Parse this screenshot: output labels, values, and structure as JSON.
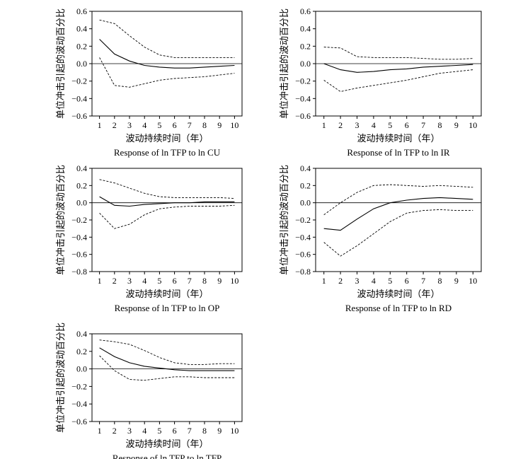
{
  "chart_data": [
    {
      "type": "line",
      "title": "Response of ln TFP to ln CU",
      "xlabel": "波动持续时间（年）",
      "ylabel": "单位冲击引起的波动百分比",
      "x": [
        1,
        2,
        3,
        4,
        5,
        6,
        7,
        8,
        9,
        10
      ],
      "xlim": [
        0.5,
        10.5
      ],
      "ylim": [
        -0.6,
        0.6
      ],
      "yticks": [
        "0.6",
        "0.4",
        "0.2",
        "0.0",
        "−0.2",
        "−0.4",
        "−0.6"
      ],
      "xticks": [
        "1",
        "2",
        "3",
        "4",
        "5",
        "6",
        "7",
        "8",
        "9",
        "10"
      ],
      "grid": false,
      "series": [
        {
          "role": "response",
          "style": "solid",
          "values": [
            0.28,
            0.11,
            0.03,
            -0.02,
            -0.04,
            -0.05,
            -0.05,
            -0.04,
            -0.03,
            -0.02
          ]
        },
        {
          "role": "upper",
          "style": "dashed",
          "values": [
            0.5,
            0.46,
            0.32,
            0.19,
            0.1,
            0.07,
            0.07,
            0.07,
            0.07,
            0.07
          ]
        },
        {
          "role": "lower",
          "style": "dashed",
          "values": [
            0.07,
            -0.25,
            -0.27,
            -0.23,
            -0.19,
            -0.17,
            -0.16,
            -0.15,
            -0.13,
            -0.11
          ]
        }
      ]
    },
    {
      "type": "line",
      "title": "Response of ln TFP to ln IR",
      "xlabel": "波动持续时间（年）",
      "ylabel": "单位冲击引起的波动百分比",
      "x": [
        1,
        2,
        3,
        4,
        5,
        6,
        7,
        8,
        9,
        10
      ],
      "xlim": [
        0.5,
        10.5
      ],
      "ylim": [
        -0.6,
        0.6
      ],
      "yticks": [
        "0.6",
        "0.4",
        "0.2",
        "0.0",
        "−0.2",
        "−0.4",
        "−0.6"
      ],
      "xticks": [
        "1",
        "2",
        "3",
        "4",
        "5",
        "6",
        "7",
        "8",
        "9",
        "10"
      ],
      "grid": false,
      "series": [
        {
          "role": "response",
          "style": "solid",
          "values": [
            0.0,
            -0.07,
            -0.1,
            -0.09,
            -0.07,
            -0.06,
            -0.04,
            -0.03,
            -0.02,
            -0.01
          ]
        },
        {
          "role": "upper",
          "style": "dashed",
          "values": [
            0.19,
            0.18,
            0.08,
            0.07,
            0.07,
            0.07,
            0.06,
            0.05,
            0.05,
            0.06
          ]
        },
        {
          "role": "lower",
          "style": "dashed",
          "values": [
            -0.19,
            -0.32,
            -0.28,
            -0.25,
            -0.22,
            -0.19,
            -0.15,
            -0.11,
            -0.09,
            -0.07
          ]
        }
      ]
    },
    {
      "type": "line",
      "title": "Response of ln TFP to ln OP",
      "xlabel": "波动持续时间（年）",
      "ylabel": "单位冲击引起的波动百分比",
      "x": [
        1,
        2,
        3,
        4,
        5,
        6,
        7,
        8,
        9,
        10
      ],
      "xlim": [
        0.5,
        10.5
      ],
      "ylim": [
        -0.8,
        0.4
      ],
      "yticks": [
        "0.4",
        "0.2",
        "0.0",
        "−0.2",
        "−0.4",
        "−0.6",
        "−0.8"
      ],
      "xticks": [
        "1",
        "2",
        "3",
        "4",
        "5",
        "6",
        "7",
        "8",
        "9",
        "10"
      ],
      "grid": false,
      "series": [
        {
          "role": "response",
          "style": "solid",
          "values": [
            0.07,
            -0.03,
            -0.04,
            -0.02,
            -0.01,
            0.0,
            0.0,
            0.01,
            0.01,
            0.01
          ]
        },
        {
          "role": "upper",
          "style": "dashed",
          "values": [
            0.27,
            0.23,
            0.17,
            0.11,
            0.07,
            0.06,
            0.06,
            0.06,
            0.06,
            0.05
          ]
        },
        {
          "role": "lower",
          "style": "dashed",
          "values": [
            -0.12,
            -0.3,
            -0.25,
            -0.14,
            -0.07,
            -0.05,
            -0.04,
            -0.04,
            -0.04,
            -0.03
          ]
        }
      ]
    },
    {
      "type": "line",
      "title": "Response of ln TFP to ln RD",
      "xlabel": "波动持续时间（年）",
      "ylabel": "单位冲击引起的波动百分比",
      "x": [
        1,
        2,
        3,
        4,
        5,
        6,
        7,
        8,
        9,
        10
      ],
      "xlim": [
        0.5,
        10.5
      ],
      "ylim": [
        -0.8,
        0.4
      ],
      "yticks": [
        "0.4",
        "0.2",
        "0.0",
        "−0.2",
        "−0.4",
        "−0.6",
        "−0.8"
      ],
      "xticks": [
        "1",
        "2",
        "3",
        "4",
        "5",
        "6",
        "7",
        "8",
        "9",
        "10"
      ],
      "grid": false,
      "series": [
        {
          "role": "response",
          "style": "solid",
          "values": [
            -0.3,
            -0.32,
            -0.19,
            -0.07,
            0.0,
            0.03,
            0.05,
            0.06,
            0.05,
            0.04
          ]
        },
        {
          "role": "upper",
          "style": "dashed",
          "values": [
            -0.14,
            0.0,
            0.12,
            0.2,
            0.21,
            0.2,
            0.19,
            0.2,
            0.19,
            0.18
          ]
        },
        {
          "role": "lower",
          "style": "dashed",
          "values": [
            -0.46,
            -0.62,
            -0.5,
            -0.36,
            -0.22,
            -0.12,
            -0.09,
            -0.08,
            -0.09,
            -0.09
          ]
        }
      ]
    },
    {
      "type": "line",
      "title": "Response of ln TFP to ln TFP",
      "xlabel": "波动持续时间（年）",
      "ylabel": "单位冲击引起的波动百分比",
      "x": [
        1,
        2,
        3,
        4,
        5,
        6,
        7,
        8,
        9,
        10
      ],
      "xlim": [
        0.5,
        10.5
      ],
      "ylim": [
        -0.6,
        0.4
      ],
      "yticks": [
        "0.4",
        "0.2",
        "0.0",
        "−0.2",
        "−0.4",
        "−0.6"
      ],
      "xticks": [
        "1",
        "2",
        "3",
        "4",
        "5",
        "6",
        "7",
        "8",
        "9",
        "10"
      ],
      "grid": false,
      "series": [
        {
          "role": "response",
          "style": "solid",
          "values": [
            0.24,
            0.14,
            0.07,
            0.03,
            0.01,
            -0.01,
            -0.02,
            -0.02,
            -0.02,
            -0.02
          ]
        },
        {
          "role": "upper",
          "style": "dashed",
          "values": [
            0.33,
            0.31,
            0.28,
            0.21,
            0.13,
            0.07,
            0.05,
            0.05,
            0.06,
            0.06
          ]
        },
        {
          "role": "lower",
          "style": "dashed",
          "values": [
            0.15,
            -0.02,
            -0.12,
            -0.13,
            -0.11,
            -0.09,
            -0.09,
            -0.1,
            -0.1,
            -0.1
          ]
        }
      ]
    }
  ]
}
